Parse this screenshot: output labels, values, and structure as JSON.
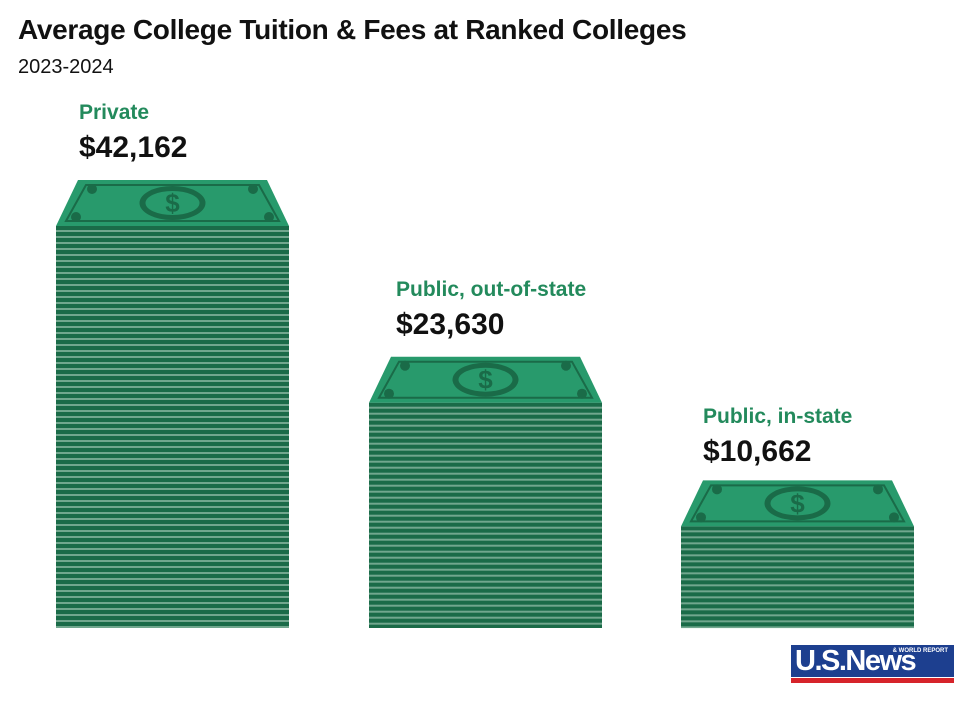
{
  "chart_data": {
    "type": "bar",
    "title": "Average College Tuition & Fees at Ranked Colleges",
    "subtitle": "2023-2024",
    "categories": [
      "Private",
      "Public, out-of-state",
      "Public, in-state"
    ],
    "values": [
      42162,
      23630,
      10662
    ],
    "value_labels": [
      "$42,162",
      "$23,630",
      "$10,662"
    ],
    "xlabel": "",
    "ylabel": "",
    "grid": false,
    "legend": "none",
    "mark_style": "stacks of dollar bills",
    "colors": {
      "bill_top": "#289a6c",
      "bill_dark": "#1a6b48",
      "stack_line": "#11613e",
      "stack_gap": "#b9d9c9",
      "label_accent": "#238a5c"
    }
  },
  "branding": {
    "logo_text": "U.S.News",
    "logo_tagline": "& WORLD REPORT"
  }
}
